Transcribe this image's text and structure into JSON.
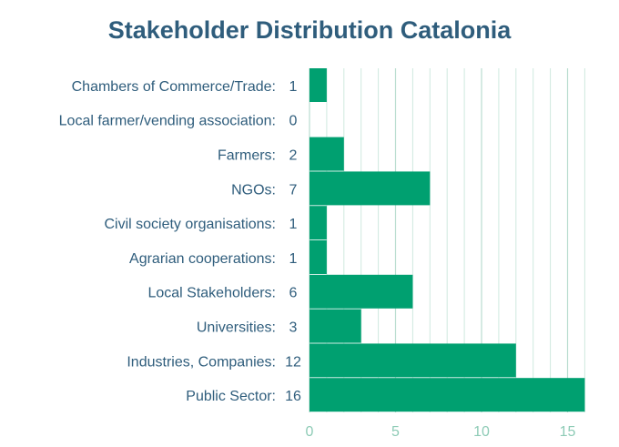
{
  "chart_data": {
    "type": "bar",
    "orientation": "horizontal",
    "title": "Stakeholder Distribution Catalonia",
    "categories": [
      "Chambers of Commerce/Trade:",
      "Local farmer/vending association:",
      "Farmers:",
      "NGOs:",
      "Civil society organisations:",
      "Agrarian cooperations:",
      "Local Stakeholders:",
      "Universities:",
      "Industries, Companies:",
      "Public Sector:"
    ],
    "values": [
      1,
      0,
      2,
      7,
      1,
      1,
      6,
      3,
      12,
      16
    ],
    "xlim": [
      0,
      16
    ],
    "xticks": [
      0,
      5,
      10,
      15
    ],
    "grid": "vertical",
    "colors": {
      "bar": "#00a070",
      "grid": "#cfe9df",
      "title": "#2f5d7c",
      "tick": "#8ecbb6"
    }
  }
}
